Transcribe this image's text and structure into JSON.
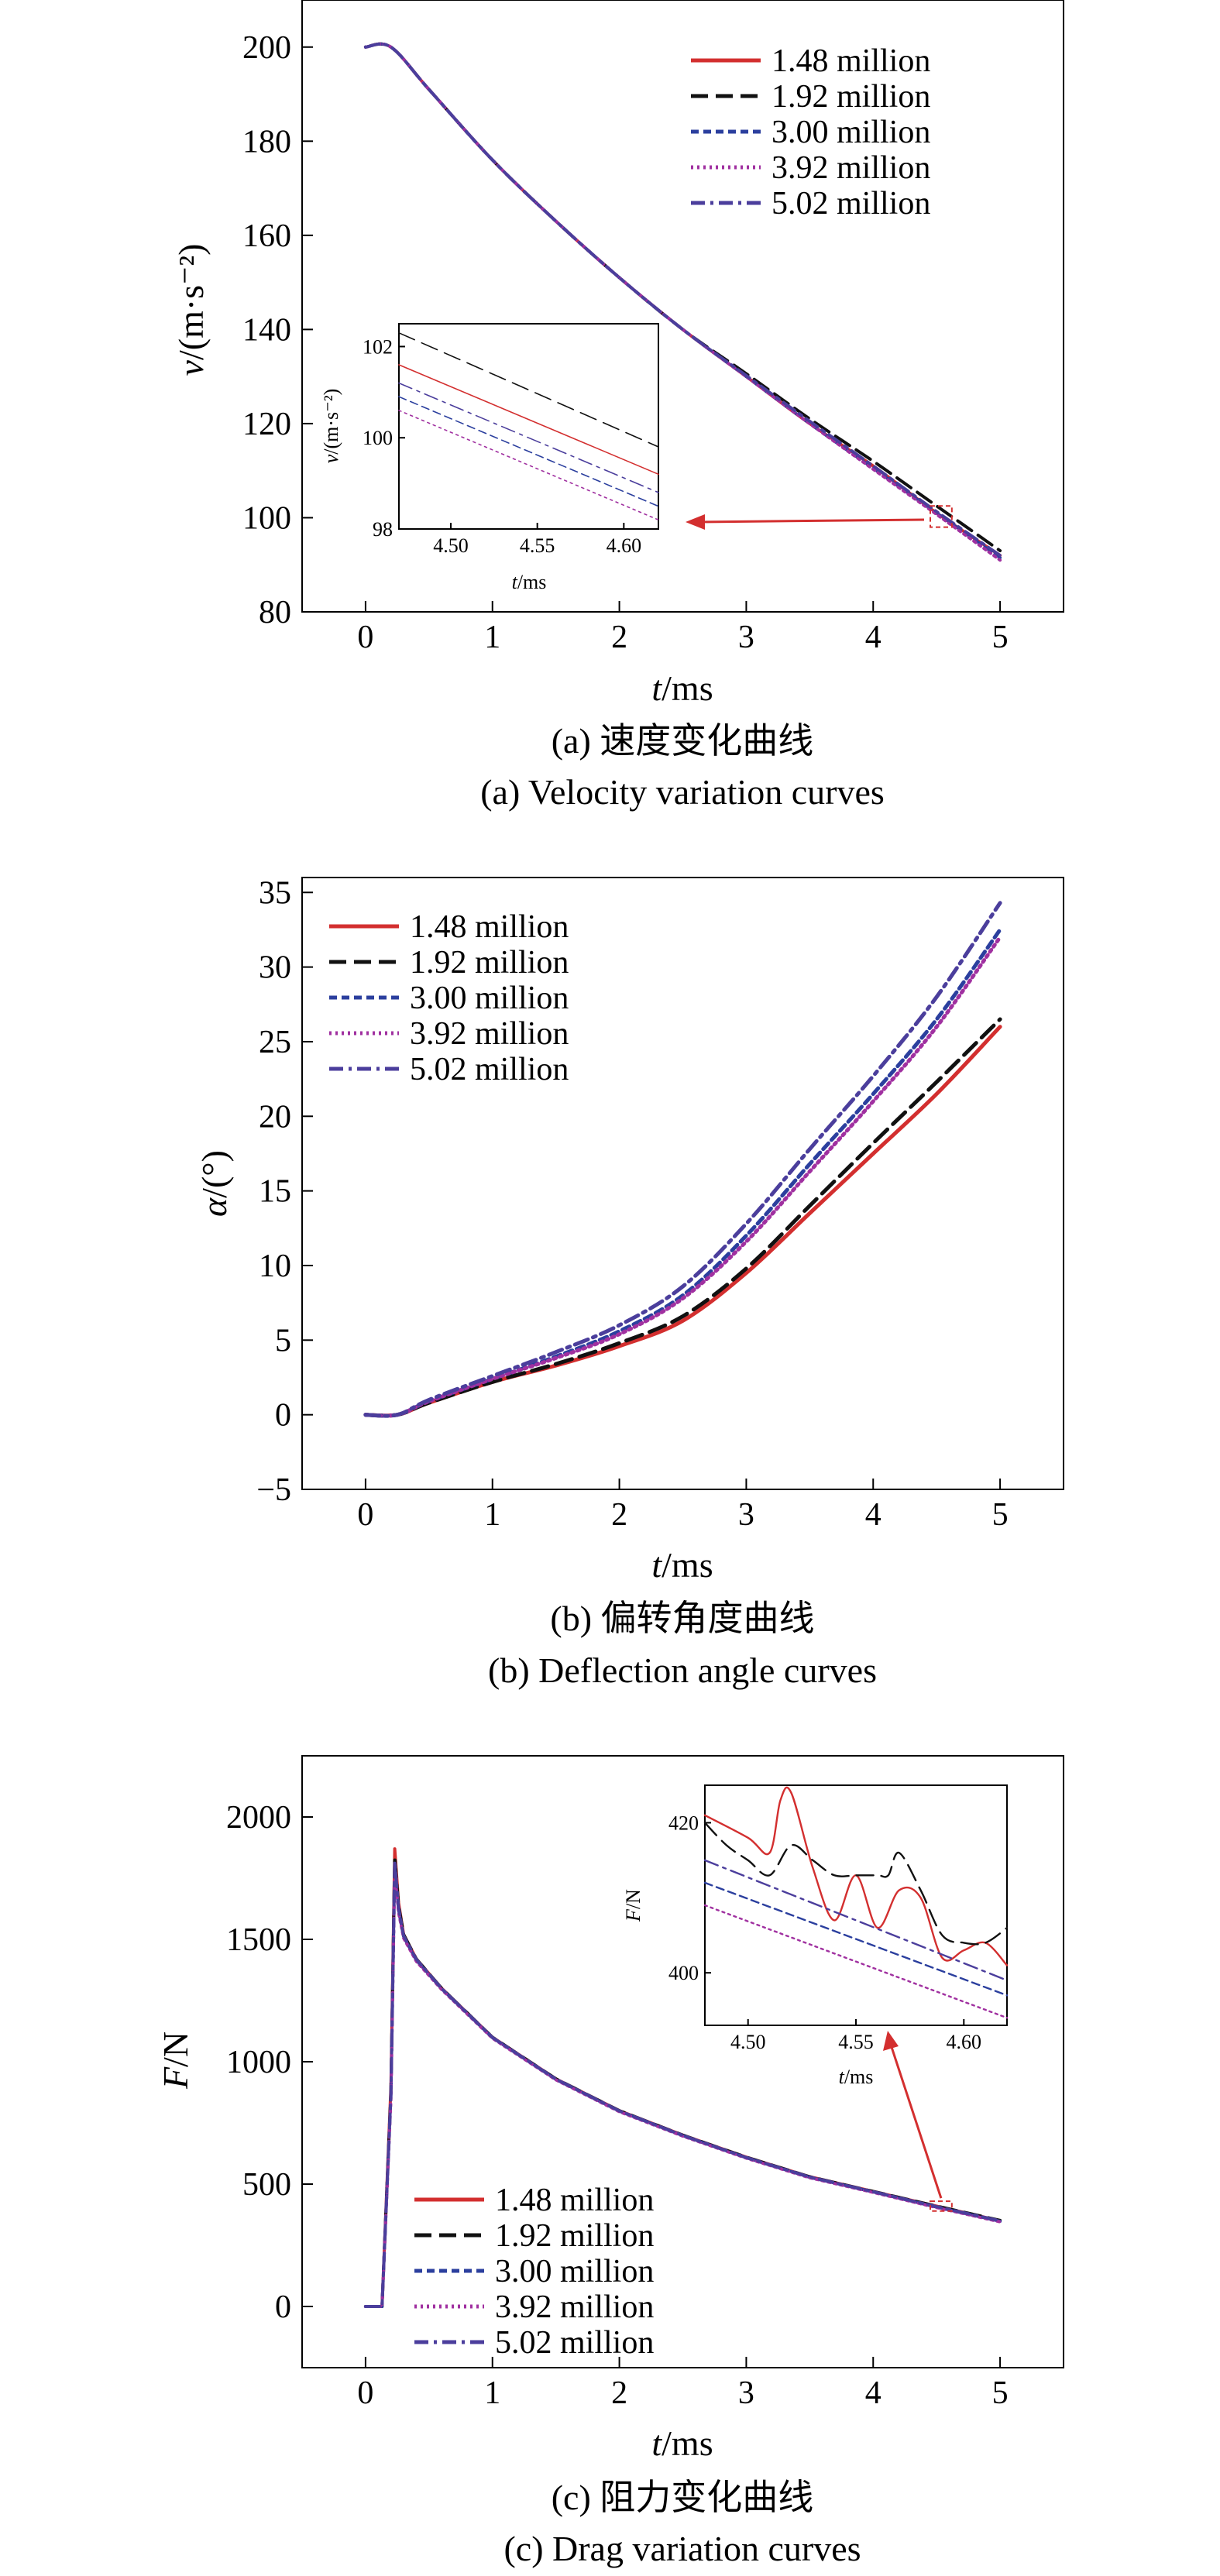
{
  "figure": {
    "panels": [
      {
        "id": "a",
        "caption_zh": "(a) 速度变化曲线",
        "caption_en": "(a) Velocity variation curves",
        "ylabel_var": "v",
        "ylabel_unit": "/(m·s⁻²)",
        "xlabel_var": "t",
        "xlabel_unit": "/ms",
        "inset": {
          "ylabel_var": "v",
          "ylabel_unit": "/(m·s⁻²)",
          "xlabel_var": "t",
          "xlabel_unit": "/ms"
        }
      },
      {
        "id": "b",
        "caption_zh": "(b) 偏转角度曲线",
        "caption_en": "(b) Deflection angle curves",
        "ylabel_var": "α",
        "ylabel_unit": "/(°)",
        "xlabel_var": "t",
        "xlabel_unit": "/ms"
      },
      {
        "id": "c",
        "caption_zh": "(c) 阻力变化曲线",
        "caption_en": "(c) Drag variation curves",
        "ylabel_var": "F",
        "ylabel_unit": "/N",
        "xlabel_var": "t",
        "xlabel_unit": "/ms",
        "inset": {
          "ylabel_var": "F",
          "ylabel_unit": "/N",
          "xlabel_var": "t",
          "xlabel_unit": "/ms"
        }
      }
    ]
  },
  "chart_data": [
    {
      "type": "line",
      "panel": "a",
      "xlim": [
        -0.5,
        5.5
      ],
      "ylim": [
        80,
        210
      ],
      "xticks": [
        0,
        1,
        2,
        3,
        4,
        5
      ],
      "yticks": [
        80,
        100,
        120,
        140,
        160,
        180,
        200
      ],
      "legend_position": "top-right",
      "series": [
        {
          "name": "1.48 million",
          "color": "#d32f2f",
          "dash": "solid",
          "x": [
            0,
            0.2,
            0.5,
            1.0,
            1.5,
            2.0,
            2.5,
            3.0,
            3.5,
            4.0,
            4.5,
            5.0
          ],
          "y": [
            200,
            200,
            191,
            176,
            163,
            151,
            140,
            130,
            120,
            111,
            101,
            92
          ]
        },
        {
          "name": "1.92 million",
          "color": "#111111",
          "dash": "long-dash",
          "x": [
            0,
            0.2,
            0.5,
            1.0,
            1.5,
            2.0,
            2.5,
            3.0,
            3.5,
            4.0,
            4.5,
            5.0
          ],
          "y": [
            200,
            200,
            191,
            176,
            163,
            151,
            140,
            130.6,
            121,
            112,
            102.5,
            93
          ]
        },
        {
          "name": "3.00 million",
          "color": "#2b3f9e",
          "dash": "short-dash",
          "x": [
            0,
            0.2,
            0.5,
            1.0,
            1.5,
            2.0,
            2.5,
            3.0,
            3.5,
            4.0,
            4.5,
            5.0
          ],
          "y": [
            200,
            200,
            191,
            176,
            163,
            151,
            140,
            130,
            120,
            110.5,
            101,
            91.5
          ]
        },
        {
          "name": "3.92 million",
          "color": "#a030a0",
          "dash": "dotted",
          "x": [
            0,
            0.2,
            0.5,
            1.0,
            1.5,
            2.0,
            2.5,
            3.0,
            3.5,
            4.0,
            4.5,
            5.0
          ],
          "y": [
            200,
            200,
            191,
            176,
            163,
            151,
            140,
            130,
            120,
            110.3,
            100.7,
            91
          ]
        },
        {
          "name": "5.02 million",
          "color": "#4b3e9c",
          "dash": "dash-dot",
          "x": [
            0,
            0.2,
            0.5,
            1.0,
            1.5,
            2.0,
            2.5,
            3.0,
            3.5,
            4.0,
            4.5,
            5.0
          ],
          "y": [
            200,
            200,
            191,
            176,
            163,
            151,
            140,
            130.2,
            120.5,
            111,
            101.3,
            92
          ]
        }
      ],
      "inset": {
        "xlim": [
          4.47,
          4.62
        ],
        "ylim": [
          98,
          102.5
        ],
        "xticks": [
          4.5,
          4.55,
          4.6
        ],
        "xtick_labels": [
          "4.50",
          "4.55",
          "4.60"
        ],
        "yticks": [
          98,
          100,
          102
        ],
        "series": [
          {
            "name": "1.48 million",
            "x": [
              4.47,
              4.62
            ],
            "y": [
              101.6,
              99.2
            ]
          },
          {
            "name": "1.92 million",
            "x": [
              4.47,
              4.62
            ],
            "y": [
              102.3,
              99.8
            ]
          },
          {
            "name": "3.00 million",
            "x": [
              4.47,
              4.62
            ],
            "y": [
              100.9,
              98.5
            ]
          },
          {
            "name": "3.92 million",
            "x": [
              4.47,
              4.62
            ],
            "y": [
              100.6,
              98.2
            ]
          },
          {
            "name": "5.02 million",
            "x": [
              4.47,
              4.62
            ],
            "y": [
              101.2,
              98.8
            ]
          }
        ]
      },
      "zoom_box": {
        "x": [
          4.45,
          4.62
        ],
        "y": [
          98,
          102.5
        ]
      }
    },
    {
      "type": "line",
      "panel": "b",
      "xlim": [
        -0.5,
        5.5
      ],
      "ylim": [
        -5,
        36
      ],
      "xticks": [
        0,
        1,
        2,
        3,
        4,
        5
      ],
      "yticks": [
        -5,
        0,
        5,
        10,
        15,
        20,
        25,
        30,
        35
      ],
      "ytick_labels": [
        "−5",
        "0",
        "5",
        "10",
        "15",
        "20",
        "25",
        "30",
        "35"
      ],
      "legend_position": "top-left",
      "series": [
        {
          "name": "1.48 million",
          "color": "#d32f2f",
          "dash": "solid",
          "x": [
            0,
            0.25,
            0.5,
            1.0,
            1.5,
            2.0,
            2.5,
            3.0,
            3.5,
            4.0,
            4.5,
            5.0
          ],
          "y": [
            0,
            0,
            0.8,
            2.2,
            3.3,
            4.6,
            6.3,
            9.5,
            13.5,
            17.5,
            21.5,
            26
          ]
        },
        {
          "name": "1.92 million",
          "color": "#111111",
          "dash": "long-dash",
          "x": [
            0,
            0.25,
            0.5,
            1.0,
            1.5,
            2.0,
            2.5,
            3.0,
            3.5,
            4.0,
            4.5,
            5.0
          ],
          "y": [
            0,
            0,
            0.8,
            2.2,
            3.4,
            4.8,
            6.6,
            9.8,
            14,
            18.2,
            22.3,
            26.5
          ]
        },
        {
          "name": "3.00 million",
          "color": "#2b3f9e",
          "dash": "short-dash",
          "x": [
            0,
            0.25,
            0.5,
            1.0,
            1.5,
            2.0,
            2.5,
            3.0,
            3.5,
            4.0,
            4.5,
            5.0
          ],
          "y": [
            0,
            0,
            0.9,
            2.4,
            3.9,
            5.6,
            8,
            12,
            16.8,
            21.5,
            26.5,
            32.5
          ]
        },
        {
          "name": "3.92 million",
          "color": "#a030a0",
          "dash": "dotted",
          "x": [
            0,
            0.25,
            0.5,
            1.0,
            1.5,
            2.0,
            2.5,
            3.0,
            3.5,
            4.0,
            4.5,
            5.0
          ],
          "y": [
            0,
            0,
            0.9,
            2.4,
            3.8,
            5.4,
            7.8,
            11.6,
            16.3,
            21,
            26,
            32
          ]
        },
        {
          "name": "5.02 million",
          "color": "#4b3e9c",
          "dash": "dash-dot",
          "x": [
            0,
            0.25,
            0.5,
            1.0,
            1.5,
            2.0,
            2.5,
            3.0,
            3.5,
            4.0,
            4.5,
            5.0
          ],
          "y": [
            0,
            0,
            1.0,
            2.6,
            4.2,
            6.0,
            8.6,
            12.8,
            17.8,
            22.7,
            28,
            34.3
          ]
        }
      ]
    },
    {
      "type": "line",
      "panel": "c",
      "xlim": [
        -0.5,
        5.5
      ],
      "ylim": [
        -250,
        2250
      ],
      "xticks": [
        0,
        1,
        2,
        3,
        4,
        5
      ],
      "yticks": [
        0,
        500,
        1000,
        1500,
        2000
      ],
      "legend_position": "bottom-left",
      "series": [
        {
          "name": "1.48 million",
          "color": "#d32f2f",
          "dash": "solid",
          "x": [
            0,
            0.13,
            0.2,
            0.23,
            0.26,
            0.3,
            0.4,
            0.6,
            1.0,
            1.5,
            2.0,
            2.5,
            3.0,
            3.5,
            4.0,
            4.5,
            5.0
          ],
          "y": [
            0,
            0,
            900,
            1870,
            1650,
            1520,
            1420,
            1300,
            1100,
            930,
            800,
            700,
            610,
            530,
            470,
            410,
            350
          ]
        },
        {
          "name": "1.92 million",
          "color": "#111111",
          "dash": "long-dash",
          "x": [
            0,
            0.13,
            0.2,
            0.23,
            0.26,
            0.3,
            0.4,
            0.6,
            1.0,
            1.5,
            2.0,
            2.5,
            3.0,
            3.5,
            4.0,
            4.5,
            5.0
          ],
          "y": [
            0,
            0,
            880,
            1840,
            1640,
            1520,
            1420,
            1300,
            1100,
            930,
            800,
            700,
            610,
            530,
            470,
            410,
            352
          ]
        },
        {
          "name": "3.00 million",
          "color": "#2b3f9e",
          "dash": "short-dash",
          "x": [
            0,
            0.13,
            0.2,
            0.23,
            0.26,
            0.3,
            0.4,
            0.6,
            1.0,
            1.5,
            2.0,
            2.5,
            3.0,
            3.5,
            4.0,
            4.5,
            5.0
          ],
          "y": [
            0,
            0,
            860,
            1800,
            1620,
            1510,
            1415,
            1298,
            1098,
            928,
            798,
            698,
            608,
            528,
            468,
            406,
            348
          ]
        },
        {
          "name": "3.92 million",
          "color": "#a030a0",
          "dash": "dotted",
          "x": [
            0,
            0.13,
            0.2,
            0.23,
            0.26,
            0.3,
            0.4,
            0.6,
            1.0,
            1.5,
            2.0,
            2.5,
            3.0,
            3.5,
            4.0,
            4.5,
            5.0
          ],
          "y": [
            0,
            0,
            850,
            1780,
            1610,
            1505,
            1410,
            1295,
            1096,
            926,
            796,
            696,
            606,
            526,
            466,
            404,
            346
          ]
        },
        {
          "name": "5.02 million",
          "color": "#4b3e9c",
          "dash": "dash-dot",
          "x": [
            0,
            0.13,
            0.2,
            0.23,
            0.26,
            0.3,
            0.4,
            0.6,
            1.0,
            1.5,
            2.0,
            2.5,
            3.0,
            3.5,
            4.0,
            4.5,
            5.0
          ],
          "y": [
            0,
            0,
            870,
            1820,
            1630,
            1515,
            1418,
            1299,
            1099,
            929,
            799,
            699,
            609,
            529,
            469,
            408,
            350
          ]
        }
      ],
      "inset": {
        "xlim": [
          4.48,
          4.62
        ],
        "ylim": [
          393,
          425
        ],
        "xticks": [
          4.5,
          4.55,
          4.6
        ],
        "xtick_labels": [
          "4.50",
          "4.55",
          "4.60"
        ],
        "yticks": [
          400,
          420
        ],
        "series": [
          {
            "name": "1.48 million",
            "x": [
              4.48,
              4.5,
              4.51,
              4.515,
              4.52,
              4.53,
              4.54,
              4.55,
              4.56,
              4.57,
              4.58,
              4.59,
              4.6,
              4.61,
              4.62
            ],
            "y": [
              421,
              418,
              416,
              423,
              424,
              414,
              407,
              413,
              406,
              411,
              410,
              402,
              403,
              404,
              401
            ]
          },
          {
            "name": "1.92 million",
            "x": [
              4.48,
              4.49,
              4.5,
              4.51,
              4.52,
              4.53,
              4.54,
              4.55,
              4.56,
              4.565,
              4.57,
              4.58,
              4.59,
              4.6,
              4.61,
              4.62
            ],
            "y": [
              420,
              417,
              415,
              413,
              417,
              415,
              413,
              413,
              413,
              413,
              416,
              411,
              405,
              404,
              404,
              406
            ]
          },
          {
            "name": "3.00 million",
            "x": [
              4.48,
              4.62
            ],
            "y": [
              412,
              397
            ]
          },
          {
            "name": "3.92 million",
            "x": [
              4.48,
              4.62
            ],
            "y": [
              409,
              394
            ]
          },
          {
            "name": "5.02 million",
            "x": [
              4.48,
              4.62
            ],
            "y": [
              415,
              399
            ]
          }
        ]
      },
      "zoom_box": {
        "x": [
          4.45,
          4.62
        ],
        "y": [
          390,
          430
        ]
      }
    }
  ]
}
